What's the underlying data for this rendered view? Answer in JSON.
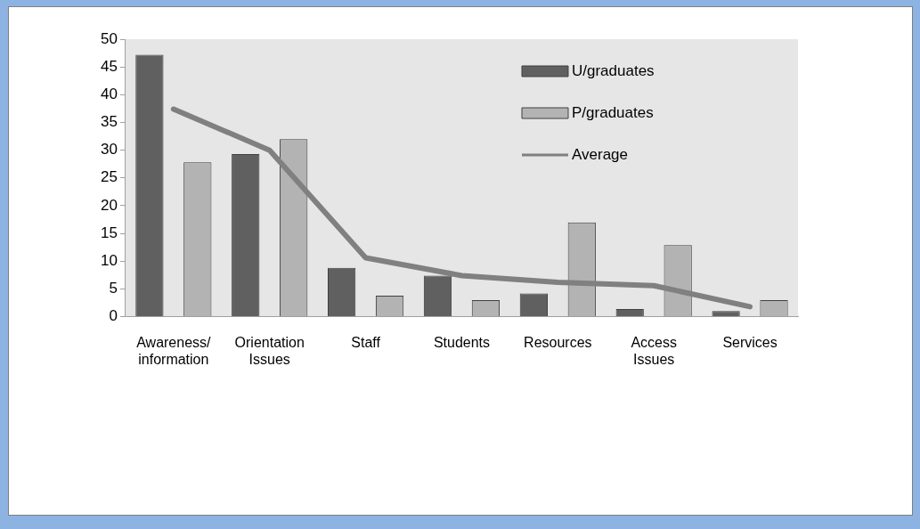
{
  "chart_data": {
    "type": "bar",
    "categories": [
      "Awareness/information",
      "Orientation Issues",
      "Staff",
      "Students",
      "Resources",
      "Access Issues",
      "Services"
    ],
    "series": [
      {
        "name": "U/graduates",
        "color": "#606060",
        "values": [
          47.2,
          29.3,
          8.8,
          7.4,
          4.2,
          1.4,
          1.0
        ]
      },
      {
        "name": "P/graduates",
        "color": "#b3b3b3",
        "values": [
          27.8,
          32,
          3.8,
          3,
          17,
          12.9,
          3
        ]
      },
      {
        "name": "Average",
        "type": "line",
        "color": "#808080",
        "values": [
          37.4,
          30,
          10.6,
          7.4,
          6.2,
          5.6,
          1.8
        ]
      }
    ],
    "ylim": [
      0,
      50
    ],
    "yticks": [
      0,
      5,
      10,
      15,
      20,
      25,
      30,
      35,
      40,
      45,
      50
    ],
    "grid": false,
    "legend": "top right"
  }
}
